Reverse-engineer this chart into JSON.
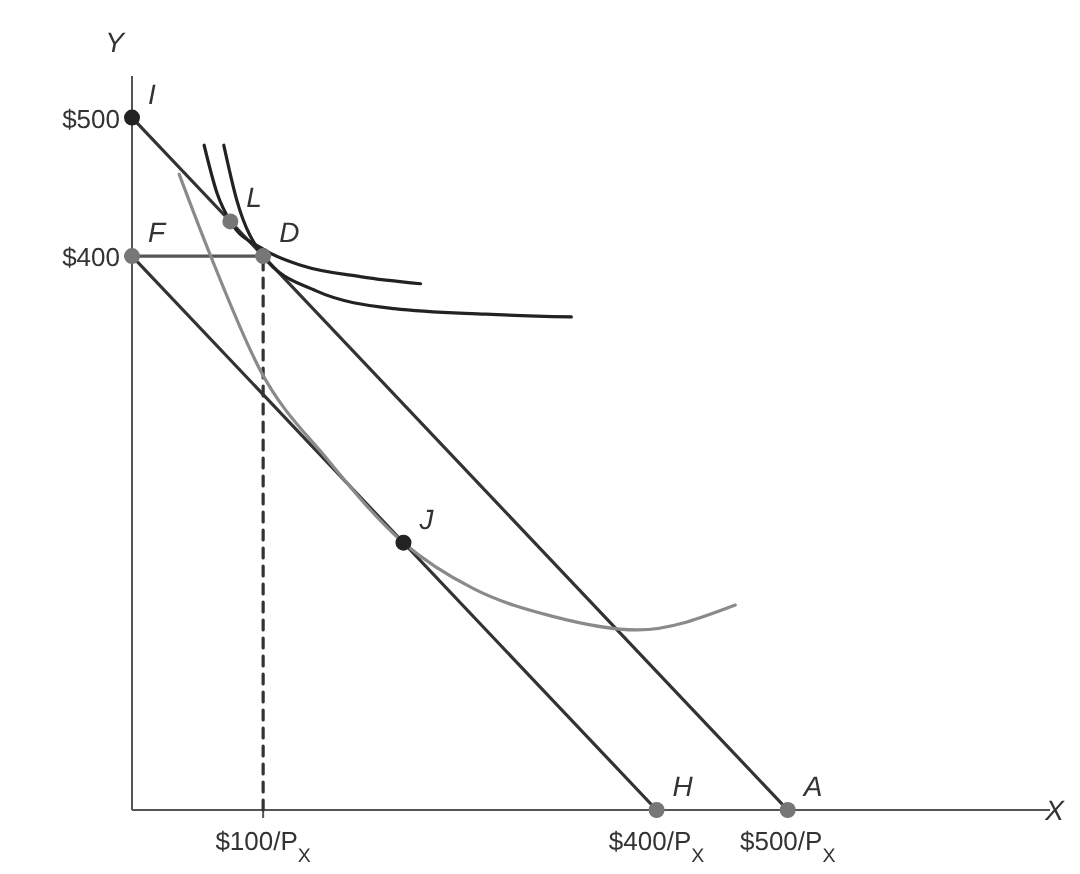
{
  "chart_data": {
    "type": "line",
    "xlabel": "X",
    "ylabel": "Y",
    "xlim": [
      0,
      700
    ],
    "ylim": [
      0,
      530
    ],
    "xticks": [
      {
        "value": 100,
        "label": "$100/P$_{X}$"
      },
      {
        "value": 400,
        "label": "$400/P$_{X}$"
      },
      {
        "value": 500,
        "label": "$500/P$_{X}$"
      }
    ],
    "yticks": [
      {
        "value": 400,
        "label": "$400"
      },
      {
        "value": 500,
        "label": "$500"
      }
    ],
    "grid": false,
    "series": [
      {
        "color": "#333333",
        "x": [
          0,
          500
        ],
        "values": [
          500,
          0
        ]
      },
      {
        "color": "#333333",
        "x": [
          0,
          400
        ],
        "values": [
          400,
          0
        ]
      },
      {
        "color": "#555555",
        "x": [
          0,
          100
        ],
        "values": [
          400,
          400
        ]
      },
      {
        "color": "#333333",
        "line_style": "dashed",
        "x": [
          100,
          100
        ],
        "values": [
          0,
          400
        ]
      },
      {
        "color": "#222222",
        "x": [
          55,
          65,
          75,
          100,
          130,
          175,
          220
        ],
        "values": [
          480,
          445,
          425,
          405,
          393,
          385,
          380
        ]
      },
      {
        "color": "#222222",
        "x": [
          70,
          80,
          100,
          140,
          200,
          270,
          335
        ],
        "values": [
          480,
          440,
          400,
          375,
          362,
          358,
          356
        ]
      },
      {
        "color": "#8a8a8a",
        "x": [
          36,
          60,
          97,
          150,
          207,
          260,
          320,
          385,
          460
        ],
        "values": [
          459,
          400,
          319,
          252,
          193,
          160,
          140,
          130,
          148
        ]
      },
      {
        "type": "scatter",
        "marker": "circle",
        "x": [
          0,
          0,
          75,
          100,
          207,
          400,
          500
        ],
        "values": [
          500,
          400,
          425,
          400,
          193,
          0,
          0
        ],
        "colors": [
          "#222222",
          "#777777",
          "#777777",
          "#777777",
          "#222222",
          "#777777",
          "#777777"
        ]
      }
    ],
    "annotations": [
      {
        "text": "I",
        "x": 0,
        "y": 500
      },
      {
        "text": "F",
        "x": 0,
        "y": 400
      },
      {
        "text": "L",
        "x": 75,
        "y": 425
      },
      {
        "text": "D",
        "x": 100,
        "y": 400
      },
      {
        "text": "J",
        "x": 207,
        "y": 193
      },
      {
        "text": "H",
        "x": 400,
        "y": 0
      },
      {
        "text": "A",
        "x": 500,
        "y": 0
      }
    ]
  }
}
